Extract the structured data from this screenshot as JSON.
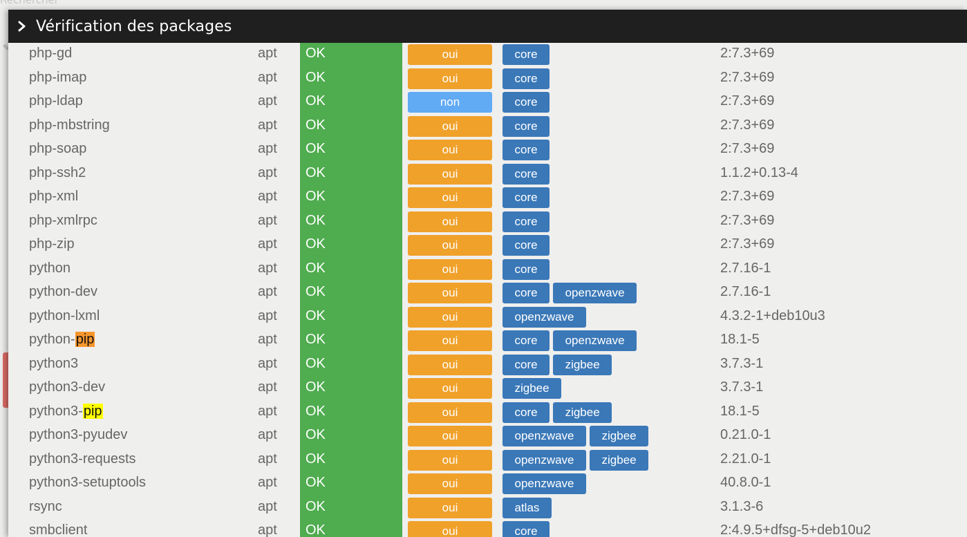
{
  "background": {
    "search_text": "Rechercher"
  },
  "modal": {
    "title": "Vérification des packages"
  },
  "colors": {
    "header_bg": "#1f1f1f",
    "ok_green": "#4fac4f",
    "oui_orange": "#f0a12a",
    "non_blue": "#61aaf4",
    "tag_blue": "#3a78b8",
    "highlight_orange": "#f7962d",
    "highlight_yellow": "#ffff00"
  },
  "packages": [
    {
      "name": "php-gd",
      "type": "apt",
      "status": "OK",
      "optional": "oui",
      "tags": [
        "core"
      ],
      "version": "2:7.3+69"
    },
    {
      "name": "php-imap",
      "type": "apt",
      "status": "OK",
      "optional": "oui",
      "tags": [
        "core"
      ],
      "version": "2:7.3+69"
    },
    {
      "name": "php-ldap",
      "type": "apt",
      "status": "OK",
      "optional": "non",
      "tags": [
        "core"
      ],
      "version": "2:7.3+69"
    },
    {
      "name": "php-mbstring",
      "type": "apt",
      "status": "OK",
      "optional": "oui",
      "tags": [
        "core"
      ],
      "version": "2:7.3+69"
    },
    {
      "name": "php-soap",
      "type": "apt",
      "status": "OK",
      "optional": "oui",
      "tags": [
        "core"
      ],
      "version": "2:7.3+69"
    },
    {
      "name": "php-ssh2",
      "type": "apt",
      "status": "OK",
      "optional": "oui",
      "tags": [
        "core"
      ],
      "version": "1.1.2+0.13-4"
    },
    {
      "name": "php-xml",
      "type": "apt",
      "status": "OK",
      "optional": "oui",
      "tags": [
        "core"
      ],
      "version": "2:7.3+69"
    },
    {
      "name": "php-xmlrpc",
      "type": "apt",
      "status": "OK",
      "optional": "oui",
      "tags": [
        "core"
      ],
      "version": "2:7.3+69"
    },
    {
      "name": "php-zip",
      "type": "apt",
      "status": "OK",
      "optional": "oui",
      "tags": [
        "core"
      ],
      "version": "2:7.3+69"
    },
    {
      "name": "python",
      "type": "apt",
      "status": "OK",
      "optional": "oui",
      "tags": [
        "core"
      ],
      "version": "2.7.16-1"
    },
    {
      "name": "python-dev",
      "type": "apt",
      "status": "OK",
      "optional": "oui",
      "tags": [
        "core",
        "openzwave"
      ],
      "version": "2.7.16-1"
    },
    {
      "name": "python-lxml",
      "type": "apt",
      "status": "OK",
      "optional": "oui",
      "tags": [
        "openzwave"
      ],
      "version": "4.3.2-1+deb10u3"
    },
    {
      "name": "python-",
      "highlight": "pip",
      "highlight_color": "orange",
      "type": "apt",
      "status": "OK",
      "optional": "oui",
      "tags": [
        "core",
        "openzwave"
      ],
      "version": "18.1-5"
    },
    {
      "name": "python3",
      "type": "apt",
      "status": "OK",
      "optional": "oui",
      "tags": [
        "core",
        "zigbee"
      ],
      "version": "3.7.3-1"
    },
    {
      "name": "python3-dev",
      "type": "apt",
      "status": "OK",
      "optional": "oui",
      "tags": [
        "zigbee"
      ],
      "version": "3.7.3-1"
    },
    {
      "name": "python3-",
      "highlight": "pip",
      "highlight_color": "yellow",
      "type": "apt",
      "status": "OK",
      "optional": "oui",
      "tags": [
        "core",
        "zigbee"
      ],
      "version": "18.1-5"
    },
    {
      "name": "python3-pyudev",
      "type": "apt",
      "status": "OK",
      "optional": "oui",
      "tags": [
        "openzwave",
        "zigbee"
      ],
      "version": "0.21.0-1"
    },
    {
      "name": "python3-requests",
      "type": "apt",
      "status": "OK",
      "optional": "oui",
      "tags": [
        "openzwave",
        "zigbee"
      ],
      "version": "2.21.0-1"
    },
    {
      "name": "python3-setuptools",
      "type": "apt",
      "status": "OK",
      "optional": "oui",
      "tags": [
        "openzwave"
      ],
      "version": "40.8.0-1"
    },
    {
      "name": "rsync",
      "type": "apt",
      "status": "OK",
      "optional": "oui",
      "tags": [
        "atlas"
      ],
      "version": "3.1.3-6"
    },
    {
      "name": "smbclient",
      "type": "apt",
      "status": "OK",
      "optional": "oui",
      "tags": [
        "core"
      ],
      "version": "2:4.9.5+dfsg-5+deb10u2"
    }
  ]
}
